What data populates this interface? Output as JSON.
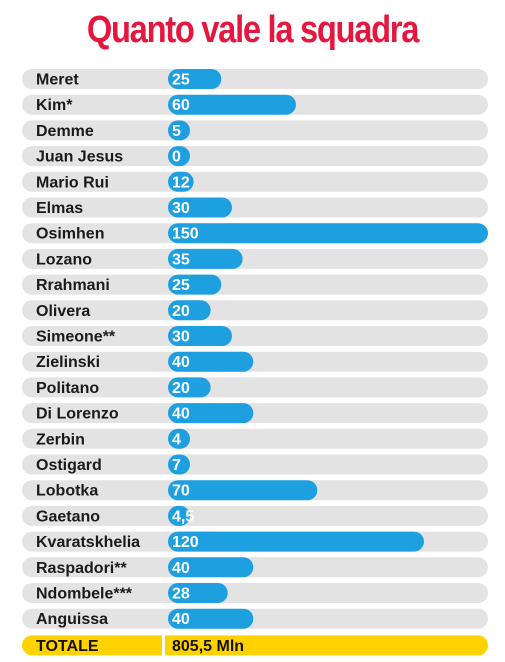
{
  "chart_data": {
    "type": "bar",
    "orientation": "horizontal",
    "title": "Quanto vale la squadra",
    "categories": [
      "Meret",
      "Kim*",
      "Demme",
      "Juan Jesus",
      "Mario Rui",
      "Elmas",
      "Osimhen",
      "Lozano",
      "Rrahmani",
      "Olivera",
      "Simeone**",
      "Zielinski",
      "Politano",
      "Di Lorenzo",
      "Zerbin",
      "Ostigard",
      "Lobotka",
      "Gaetano",
      "Kvaratskhelia",
      "Raspadori**",
      "Ndombele***",
      "Anguissa"
    ],
    "values": [
      25,
      60,
      5,
      0,
      12,
      30,
      150,
      35,
      25,
      20,
      30,
      40,
      20,
      40,
      4,
      7,
      70,
      4.5,
      120,
      40,
      28,
      40
    ],
    "value_labels": [
      "25",
      "60",
      "5",
      "0",
      "12",
      "30",
      "150",
      "35",
      "25",
      "20",
      "30",
      "40",
      "20",
      "40",
      "4",
      "7",
      "70",
      "4,5",
      "120",
      "40",
      "28",
      "40"
    ],
    "xlim": [
      0,
      150
    ],
    "grid": false,
    "total": {
      "label": "TOTALE",
      "value": "805,5 Mln"
    },
    "colors": {
      "title": "#e5173f",
      "bar": "#1e9fe0",
      "track": "#e3e3e3",
      "total_bar": "#ffd200"
    }
  }
}
